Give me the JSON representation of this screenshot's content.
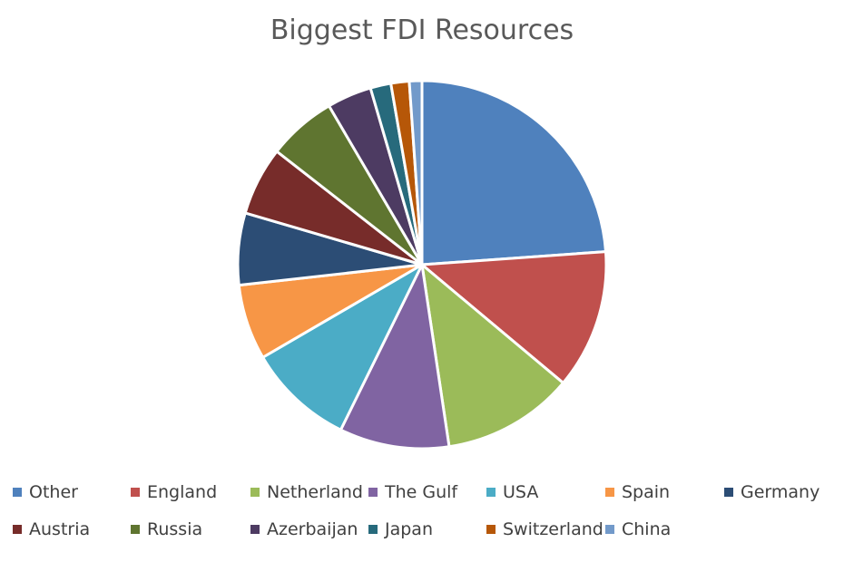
{
  "chart_data": {
    "type": "pie",
    "title": "Biggest FDI Resources",
    "categories": [
      "Other",
      "England",
      "Netherland",
      "The Gulf",
      "USA",
      "Spain",
      "Germany",
      "Austria",
      "Russia",
      "Azerbaijan",
      "Japan",
      "Switzerland",
      "China"
    ],
    "values": [
      23.8,
      12.2,
      11.5,
      9.6,
      9.3,
      6.6,
      6.3,
      6.0,
      6.0,
      3.9,
      1.8,
      1.6,
      1.1
    ],
    "unit": "share of total (estimated)",
    "colors": [
      "#4F81BD",
      "#C0504D",
      "#9BBB59",
      "#8064A2",
      "#4BACC6",
      "#F79646",
      "#2C4D75",
      "#772C2A",
      "#5F7530",
      "#4D3B62",
      "#276A7C",
      "#B65708",
      "#729ACA"
    ],
    "legend_position": "bottom",
    "start_angle_deg": 0,
    "direction": "clockwise"
  }
}
